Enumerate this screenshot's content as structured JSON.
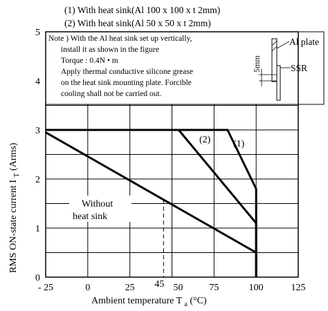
{
  "chart_data": {
    "type": "line",
    "legend": [
      "(1) With heat sink(Al 100 x 100 x t 2mm)",
      "(2) With heat sink(Al  50 x  50 x t 2mm)"
    ],
    "xlabel": "Ambient temperature T a (°C)",
    "ylabel": "RMS ON-state current I T (Arms)",
    "xlim": [
      -25,
      125
    ],
    "ylim": [
      0,
      5
    ],
    "xticks": [
      "- 25",
      "0",
      "25",
      "45",
      "50",
      "75",
      "100",
      "125"
    ],
    "yticks": [
      "0",
      "1",
      "2",
      "3",
      "4",
      "5"
    ],
    "grid": true,
    "series": [
      {
        "name": "(1)",
        "x": [
          -25,
          83,
          100,
          100
        ],
        "y": [
          3,
          3,
          1.8,
          0
        ]
      },
      {
        "name": "(2)",
        "x": [
          -25,
          54,
          100,
          100
        ],
        "y": [
          3,
          3,
          1.1,
          0
        ]
      },
      {
        "name": "Without heat sink",
        "x": [
          -25,
          100,
          100
        ],
        "y": [
          2.95,
          0.5,
          0
        ]
      }
    ],
    "annotations": {
      "series_1_label": "(1)",
      "series_2_label": "(2)",
      "without_label_line1": "Without",
      "without_label_line2": "heat sink",
      "marker_x": 45
    },
    "note": {
      "lines": [
        "Note ) With the Al heat sink set up vertically,",
        "install it as shown in the figure",
        "Torque : 0.4N • m",
        "Apply thermal conductive silicone grease",
        "on the heat sink mounting plate. Forcible",
        "cooling shall not be carried out."
      ],
      "diagram_labels": {
        "plate": "Al plate",
        "ssr": "SSR",
        "dim": "5mm"
      }
    }
  }
}
